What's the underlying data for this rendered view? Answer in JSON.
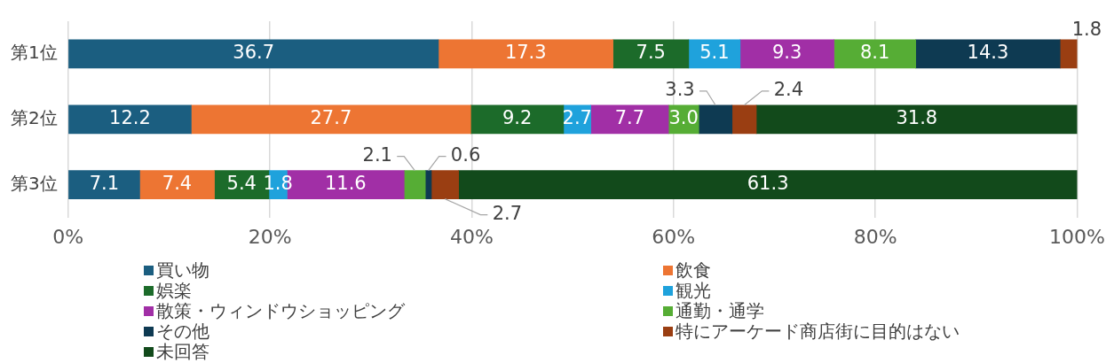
{
  "chart_data": {
    "type": "bar",
    "orientation": "horizontal",
    "stacked": true,
    "categories": [
      "第1位",
      "第2位",
      "第3位"
    ],
    "xlim": [
      0,
      100
    ],
    "xticks": [
      {
        "value": 0,
        "label": "0%"
      },
      {
        "value": 20,
        "label": "20%"
      },
      {
        "value": 40,
        "label": "40%"
      },
      {
        "value": 60,
        "label": "60%"
      },
      {
        "value": 80,
        "label": "80%"
      },
      {
        "value": 100,
        "label": "100%"
      }
    ],
    "grid": "x",
    "legend": "bottom",
    "series": [
      {
        "name": "買い物",
        "color": "#1b5e80",
        "values": [
          36.7,
          12.2,
          7.1
        ],
        "value_labels": [
          "36.7",
          "12.2",
          "7.1"
        ]
      },
      {
        "name": "飲食",
        "color": "#ed7533",
        "values": [
          17.3,
          27.7,
          7.4
        ],
        "value_labels": [
          "17.3",
          "27.7",
          "7.4"
        ]
      },
      {
        "name": "娯楽",
        "color": "#1c6b2a",
        "values": [
          7.5,
          9.2,
          5.4
        ],
        "value_labels": [
          "7.5",
          "9.2",
          "5.4"
        ]
      },
      {
        "name": "観光",
        "color": "#1fa2dc",
        "values": [
          5.1,
          2.7,
          1.8
        ],
        "value_labels": [
          "5.1",
          "2.7",
          "1.8"
        ]
      },
      {
        "name": "散策・ウィンドウショッピング",
        "color": "#a12fa6",
        "values": [
          9.3,
          7.7,
          11.6
        ],
        "value_labels": [
          "9.3",
          "7.7",
          "11.6"
        ]
      },
      {
        "name": "通勤・通学",
        "color": "#56ad35",
        "values": [
          8.1,
          3.0,
          2.1
        ],
        "value_labels": [
          "8.1",
          "3.0",
          "2.1"
        ]
      },
      {
        "name": "その他",
        "color": "#0e3a52",
        "values": [
          14.3,
          3.3,
          0.6
        ],
        "value_labels": [
          "14.3",
          "3.3",
          "0.6"
        ]
      },
      {
        "name": "特にアーケード商店街に目的はない",
        "color": "#9a3e12",
        "values": [
          1.8,
          2.4,
          2.7
        ],
        "value_labels": [
          "1.8",
          "2.4",
          "2.7"
        ]
      },
      {
        "name": "未回答",
        "color": "#124a1b",
        "values": [
          null,
          31.8,
          61.3
        ],
        "value_labels": [
          null,
          "31.8",
          "61.3"
        ]
      }
    ]
  }
}
